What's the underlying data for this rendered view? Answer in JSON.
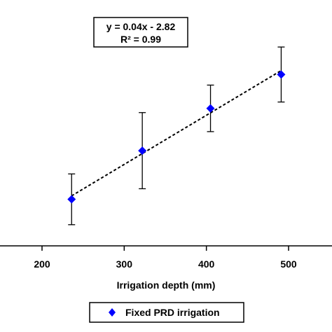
{
  "chart_data": {
    "type": "scatter",
    "xlabel": "Irrigation depth (mm)",
    "ylabel": "",
    "xlim": [
      150,
      520
    ],
    "ylim": [
      0,
      11
    ],
    "x_ticks": [
      200,
      300,
      400,
      500
    ],
    "x_tick_labels": [
      "200",
      "300",
      "400",
      "500"
    ],
    "grid": false,
    "legend_position": "bottom",
    "series": [
      {
        "name": "Fixed PRD irrigation",
        "color": "#0000ff",
        "marker": "diamond",
        "points": [
          {
            "x": 236,
            "y": 2.2,
            "err": 1.2
          },
          {
            "x": 322,
            "y": 4.5,
            "err": 1.8
          },
          {
            "x": 405,
            "y": 6.5,
            "err": 1.1
          },
          {
            "x": 491,
            "y": 8.1,
            "err": 1.3
          }
        ]
      }
    ],
    "trendline": {
      "style": "dashed",
      "color": "#000000",
      "equation": "y = 0.04x - 2.82",
      "r2_label": "R² = 0.99"
    }
  }
}
